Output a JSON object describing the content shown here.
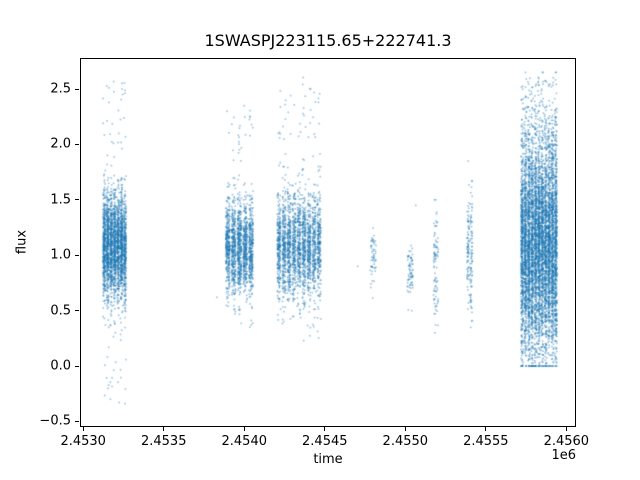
{
  "figure": {
    "background": "#ffffff"
  },
  "chart_data": {
    "type": "scatter",
    "title": "1SWASPJ223115.65+222741.3",
    "xlabel": "time",
    "ylabel": "flux",
    "x_offset_label": "1e6",
    "xlim": [
      2452980,
      2456060
    ],
    "ylim": [
      -0.55,
      2.78
    ],
    "xticks": {
      "values": [
        2453000,
        2453500,
        2454000,
        2454500,
        2455000,
        2455500,
        2456000
      ],
      "labels": [
        "2.4530",
        "2.4535",
        "2.4540",
        "2.4545",
        "2.4550",
        "2.4555",
        "2.4560"
      ]
    },
    "yticks": {
      "values": [
        -0.5,
        0.0,
        0.5,
        1.0,
        1.5,
        2.0,
        2.5
      ],
      "labels": [
        "−0.5",
        "0.0",
        "0.5",
        "1.0",
        "1.5",
        "2.0",
        "2.5"
      ]
    },
    "grid": false,
    "legend": null,
    "marker": {
      "color": "#1f77b4",
      "alpha": 0.45,
      "size": 1.6
    },
    "clusters": [
      {
        "t_center": 2453195,
        "t_halfwidth": 75,
        "n": 2600,
        "sub_columns": 7,
        "flux_mean": 1.08,
        "flux_sd": 0.24,
        "flux_min": -0.42,
        "flux_max": 2.62,
        "outlier_frac": 0.05,
        "outlier_lo": -0.38,
        "outlier_hi": 2.6
      },
      {
        "t_center": 2453970,
        "t_halfwidth": 90,
        "n": 1700,
        "sub_columns": 5,
        "flux_mean": 1.07,
        "flux_sd": 0.2,
        "flux_min": 0.28,
        "flux_max": 2.38,
        "outlier_frac": 0.05,
        "outlier_lo": 0.3,
        "outlier_hi": 2.35
      },
      {
        "t_center": 2454340,
        "t_halfwidth": 140,
        "n": 2300,
        "sub_columns": 9,
        "flux_mean": 1.08,
        "flux_sd": 0.22,
        "flux_min": 0.15,
        "flux_max": 2.65,
        "outlier_frac": 0.06,
        "outlier_lo": 0.2,
        "outlier_hi": 2.62
      },
      {
        "t_center": 2454800,
        "t_halfwidth": 18,
        "n": 55,
        "sub_columns": 1,
        "flux_mean": 1.0,
        "flux_sd": 0.12,
        "flux_min": 0.5,
        "flux_max": 1.3,
        "outlier_frac": 0.05,
        "outlier_lo": 0.55,
        "outlier_hi": 1.28
      },
      {
        "t_center": 2455030,
        "t_halfwidth": 18,
        "n": 70,
        "sub_columns": 1,
        "flux_mean": 0.83,
        "flux_sd": 0.13,
        "flux_min": 0.5,
        "flux_max": 1.12,
        "outlier_frac": 0.04,
        "outlier_lo": 0.55,
        "outlier_hi": 1.05
      },
      {
        "t_center": 2455190,
        "t_halfwidth": 15,
        "n": 90,
        "sub_columns": 1,
        "flux_mean": 0.9,
        "flux_sd": 0.26,
        "flux_min": 0.3,
        "flux_max": 1.5,
        "outlier_frac": 0.05,
        "outlier_lo": 0.32,
        "outlier_hi": 1.48
      },
      {
        "t_center": 2455400,
        "t_halfwidth": 20,
        "n": 160,
        "sub_columns": 2,
        "flux_mean": 1.02,
        "flux_sd": 0.32,
        "flux_min": 0.3,
        "flux_max": 1.85,
        "outlier_frac": 0.05,
        "outlier_lo": 0.32,
        "outlier_hi": 1.82
      },
      {
        "t_center": 2455830,
        "t_halfwidth": 115,
        "n": 6500,
        "sub_columns": 11,
        "flux_mean": 1.1,
        "flux_sd": 0.48,
        "flux_min": 0.0,
        "flux_max": 2.65,
        "outlier_frac": 0.08,
        "outlier_lo": 0.02,
        "outlier_hi": 2.62
      }
    ],
    "singles": [
      {
        "t": 2453830,
        "f": 0.62
      },
      {
        "t": 2454705,
        "f": 0.9
      },
      {
        "t": 2455065,
        "f": 1.45
      }
    ]
  }
}
